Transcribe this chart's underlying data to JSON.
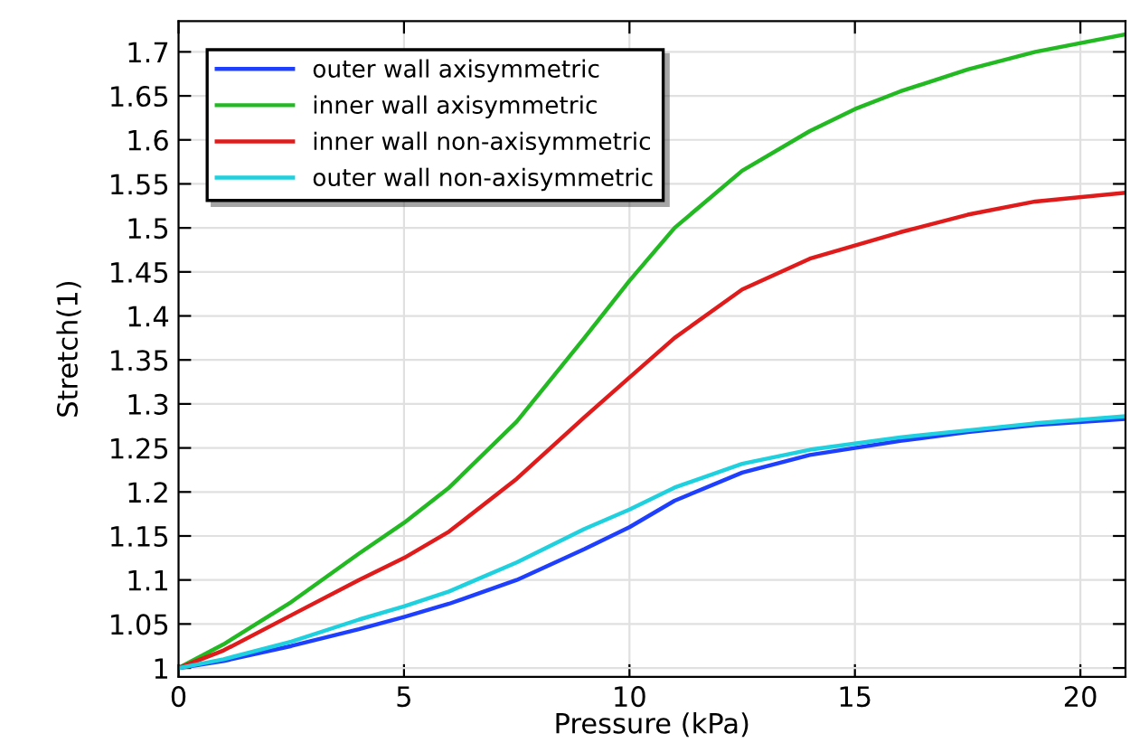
{
  "chart_data": {
    "type": "line",
    "xlabel": "Pressure (kPa)",
    "ylabel": "Stretch(1)",
    "x": [
      0,
      1,
      2.5,
      4,
      5,
      6,
      7.5,
      9,
      10,
      11,
      12.5,
      14,
      15,
      16,
      17.5,
      19,
      21
    ],
    "series": [
      {
        "name": "outer wall axisymmetric",
        "color": "#1f3fff",
        "values": [
          1.0,
          1.008,
          1.025,
          1.044,
          1.058,
          1.073,
          1.1,
          1.135,
          1.16,
          1.19,
          1.222,
          1.242,
          1.25,
          1.258,
          1.268,
          1.276,
          1.283
        ]
      },
      {
        "name": "inner wall axisymmetric",
        "color": "#22b922",
        "values": [
          1.0,
          1.027,
          1.075,
          1.13,
          1.165,
          1.205,
          1.28,
          1.375,
          1.44,
          1.5,
          1.565,
          1.61,
          1.635,
          1.655,
          1.68,
          1.7,
          1.72
        ]
      },
      {
        "name": "inner wall non-axisymmetric",
        "color": "#e01b1b",
        "values": [
          1.0,
          1.02,
          1.06,
          1.1,
          1.125,
          1.155,
          1.215,
          1.285,
          1.33,
          1.375,
          1.43,
          1.465,
          1.48,
          1.495,
          1.515,
          1.53,
          1.54
        ]
      },
      {
        "name": "outer wall non-axisymmetric",
        "color": "#1fd0de",
        "values": [
          1.0,
          1.01,
          1.03,
          1.055,
          1.07,
          1.087,
          1.12,
          1.158,
          1.18,
          1.205,
          1.232,
          1.248,
          1.255,
          1.262,
          1.27,
          1.278,
          1.286
        ]
      }
    ],
    "xlim": [
      0,
      21
    ],
    "ylim": [
      0.99,
      1.735
    ],
    "xticks": [
      0,
      5,
      10,
      15,
      20
    ],
    "yticks": [
      1,
      1.05,
      1.1,
      1.15,
      1.2,
      1.25,
      1.3,
      1.35,
      1.4,
      1.45,
      1.5,
      1.55,
      1.6,
      1.65,
      1.7
    ],
    "grid": true,
    "legend": "top left",
    "line_style": "solid",
    "marker": "none"
  }
}
